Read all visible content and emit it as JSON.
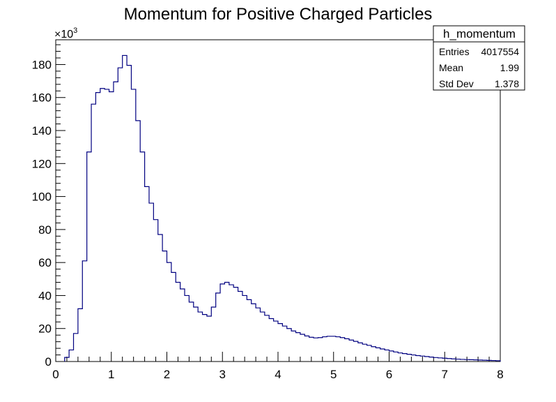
{
  "chart_data": {
    "type": "bar",
    "histogram_style": "step",
    "title": "Momentum for Positive Charged Particles",
    "xlabel": "",
    "ylabel": "",
    "xlim": [
      0,
      8
    ],
    "ylim": [
      0,
      195000
    ],
    "y_multiplier_label": "×10",
    "y_multiplier_exponent": "3",
    "x_tick_labels": [
      "0",
      "1",
      "2",
      "3",
      "4",
      "5",
      "6",
      "7",
      "8"
    ],
    "y_tick_labels": [
      "0",
      "20",
      "40",
      "60",
      "80",
      "100",
      "120",
      "140",
      "160",
      "180"
    ],
    "grid": false,
    "line_color": "#000080",
    "bin_width": 0.08,
    "bin_low_edges": [
      0.16,
      0.24,
      0.32,
      0.4,
      0.48,
      0.56,
      0.64,
      0.72,
      0.8,
      0.88,
      0.96,
      1.04,
      1.12,
      1.2,
      1.28,
      1.36,
      1.44,
      1.52,
      1.6,
      1.68,
      1.76,
      1.84,
      1.92,
      2.0,
      2.08,
      2.16,
      2.24,
      2.32,
      2.4,
      2.48,
      2.56,
      2.64,
      2.72,
      2.8,
      2.88,
      2.96,
      3.04,
      3.12,
      3.2,
      3.28,
      3.36,
      3.44,
      3.52,
      3.6,
      3.68,
      3.76,
      3.84,
      3.92,
      4.0,
      4.08,
      4.16,
      4.24,
      4.32,
      4.4,
      4.48,
      4.56,
      4.64,
      4.72,
      4.8,
      4.88,
      4.96,
      5.04,
      5.12,
      5.2,
      5.28,
      5.36,
      5.44,
      5.52,
      5.6,
      5.68,
      5.76,
      5.84,
      5.92,
      6.0,
      6.08,
      6.16,
      6.24,
      6.32,
      6.4,
      6.48,
      6.56,
      6.64,
      6.72,
      6.8,
      6.88,
      6.96,
      7.04,
      7.12,
      7.2,
      7.28,
      7.36,
      7.44,
      7.52,
      7.6,
      7.68,
      7.76,
      7.84,
      7.92
    ],
    "values": [
      2500,
      7000,
      17000,
      32000,
      61000,
      127000,
      156000,
      163000,
      165500,
      165000,
      163500,
      169500,
      178000,
      185500,
      179500,
      165000,
      146000,
      127000,
      106000,
      96000,
      86000,
      77000,
      67000,
      60000,
      54000,
      48000,
      44000,
      40000,
      36000,
      33000,
      30000,
      28500,
      27500,
      33000,
      41500,
      47000,
      48000,
      46500,
      45000,
      42500,
      40000,
      37500,
      35000,
      32500,
      30000,
      28000,
      26000,
      24500,
      23000,
      21500,
      20000,
      18500,
      17500,
      16500,
      15500,
      14700,
      14300,
      14500,
      15000,
      15300,
      15300,
      15000,
      14500,
      13800,
      13000,
      12200,
      11300,
      10500,
      9800,
      9000,
      8300,
      7600,
      7000,
      6400,
      5800,
      5200,
      4800,
      4400,
      4000,
      3600,
      3300,
      3000,
      2700,
      2400,
      2200,
      2000,
      1800,
      1600,
      1450,
      1300,
      1200,
      1100,
      1000,
      900,
      800,
      700,
      600,
      500
    ]
  },
  "stats_box": {
    "name": "h_momentum",
    "rows": [
      {
        "label": "Entries",
        "value": "4017554"
      },
      {
        "label": "Mean",
        "value": "1.99"
      },
      {
        "label": "Std Dev",
        "value": "1.378"
      }
    ]
  }
}
